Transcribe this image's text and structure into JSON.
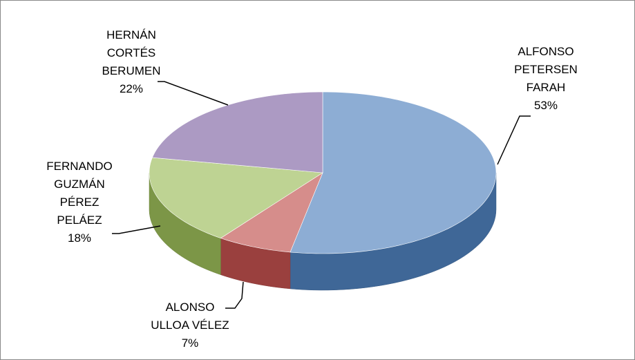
{
  "chart_data": {
    "type": "pie3d",
    "categories": [
      "ALFONSO\nPETERSEN\nFARAH",
      "ALONSO\nULLOA VÉLEZ",
      "FERNANDO\nGUZMÁN\nPÉREZ\nPELÁEZ",
      "HERNÁN\nCORTÉS\nBERUMEN"
    ],
    "values": [
      53,
      7,
      18,
      22
    ],
    "value_labels": [
      "53%",
      "7%",
      "18%",
      "22%"
    ],
    "colors": [
      "#4f81bd",
      "#c0504d",
      "#9bbb59",
      "#8064a2"
    ]
  }
}
